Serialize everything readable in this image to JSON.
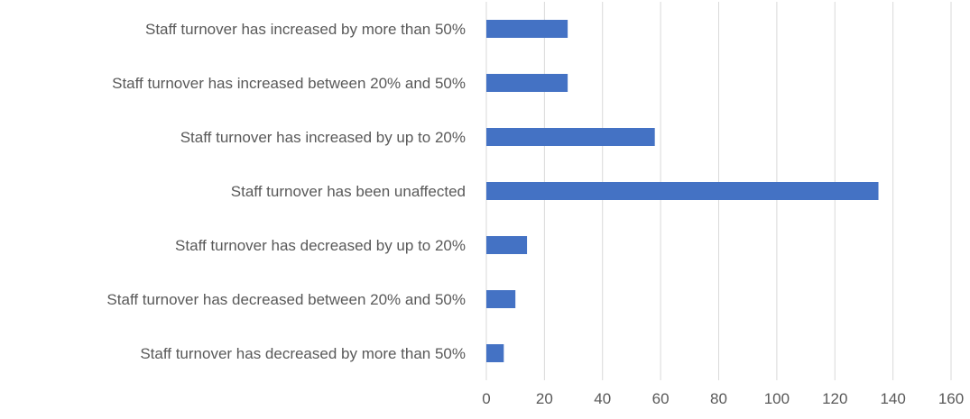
{
  "chart_data": {
    "type": "bar",
    "orientation": "horizontal",
    "title": "",
    "xlabel": "",
    "ylabel": "",
    "categories": [
      "Staff turnover has increased by more than 50%",
      "Staff turnover has increased between 20% and 50%",
      "Staff turnover has increased by up to 20%",
      "Staff turnover has been unaffected",
      "Staff turnover has decreased by up to 20%",
      "Staff turnover has decreased between 20% and 50%",
      "Staff turnover has decreased by more than 50%"
    ],
    "values": [
      28,
      28,
      58,
      135,
      14,
      10,
      6
    ],
    "xlim": [
      0,
      160
    ],
    "xticks": [
      0,
      20,
      40,
      60,
      80,
      100,
      120,
      140,
      160
    ],
    "grid": "vertical",
    "legend": "none",
    "bar_color": "#4472C4",
    "grid_color": "#D9D9D9",
    "text_color": "#595959"
  }
}
